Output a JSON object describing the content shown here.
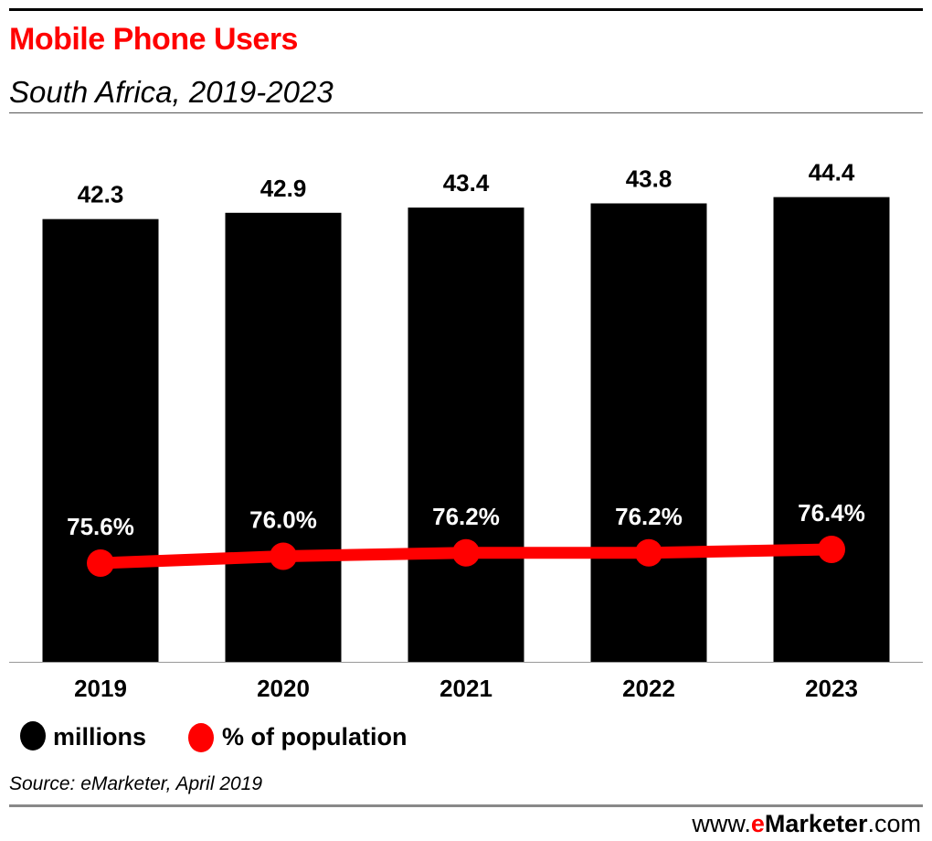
{
  "header": {
    "title": "Mobile Phone Users",
    "subtitle": "South Africa, 2019-2023"
  },
  "chart_data": {
    "type": "bar",
    "categories": [
      "2019",
      "2020",
      "2021",
      "2022",
      "2023"
    ],
    "series": [
      {
        "name": "millions",
        "type": "bar",
        "color": "#000000",
        "values": [
          42.3,
          42.9,
          43.4,
          43.8,
          44.4
        ],
        "labels": [
          "42.3",
          "42.9",
          "43.4",
          "43.8",
          "44.4"
        ]
      },
      {
        "name": "% of population",
        "type": "line",
        "color": "#ff0000",
        "values": [
          75.6,
          76.0,
          76.2,
          76.2,
          76.4
        ],
        "labels": [
          "75.6%",
          "76.0%",
          "76.2%",
          "76.2%",
          "76.4%"
        ]
      }
    ],
    "title": "Mobile Phone Users",
    "subtitle": "South Africa, 2019-2023",
    "legend": "bottom-left",
    "grid": false
  },
  "footer": {
    "source": "Source: eMarketer, April 2019",
    "brand_prefix": "www.",
    "brand_e": "e",
    "brand_main": "Marketer",
    "brand_suffix": ".com"
  }
}
